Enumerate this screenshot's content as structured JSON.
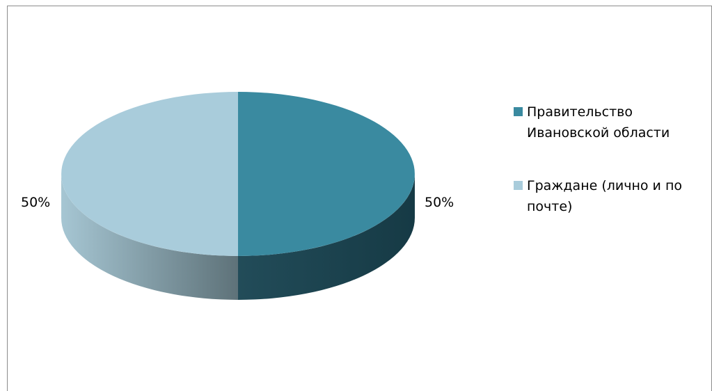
{
  "chart_data": {
    "type": "pie",
    "style": "3d",
    "slices": [
      {
        "label": "Правительство Ивановской области",
        "value": 50,
        "data_label": "50%",
        "color": "#3A8AA0"
      },
      {
        "label": "Граждане (лично и по почте)",
        "value": 50,
        "data_label": "50%",
        "color": "#A9CCDB"
      }
    ],
    "legend_position": "right",
    "legend": [
      {
        "line1": "Правительство",
        "line2": "Ивановской области"
      },
      {
        "line1": "Граждане (лично и по",
        "line2": "почте)"
      }
    ]
  }
}
